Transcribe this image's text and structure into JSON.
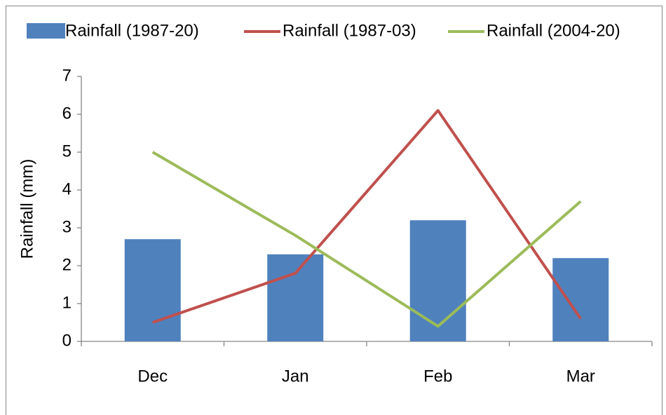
{
  "chart_data": {
    "type": "bar",
    "y_label": "Rainfall (mm)",
    "categories": [
      "Dec",
      "Jan",
      "Feb",
      "Mar"
    ],
    "series": [
      {
        "name": "Rainfall (1987-20)",
        "type": "bar",
        "color": "#4f81bd",
        "values": [
          2.7,
          2.3,
          3.2,
          2.2
        ]
      },
      {
        "name": "Rainfall (1987-03)",
        "type": "line",
        "color": "#c0504d",
        "values": [
          0.5,
          1.8,
          6.1,
          0.6
        ]
      },
      {
        "name": "Rainfall (2004-20)",
        "type": "line",
        "color": "#9bbb59",
        "values": [
          5.0,
          2.8,
          0.4,
          3.7
        ]
      }
    ],
    "ylim": [
      0,
      7
    ],
    "yticks": [
      0,
      1,
      2,
      3,
      4,
      5,
      6,
      7
    ],
    "grid": false,
    "legend": "top"
  }
}
